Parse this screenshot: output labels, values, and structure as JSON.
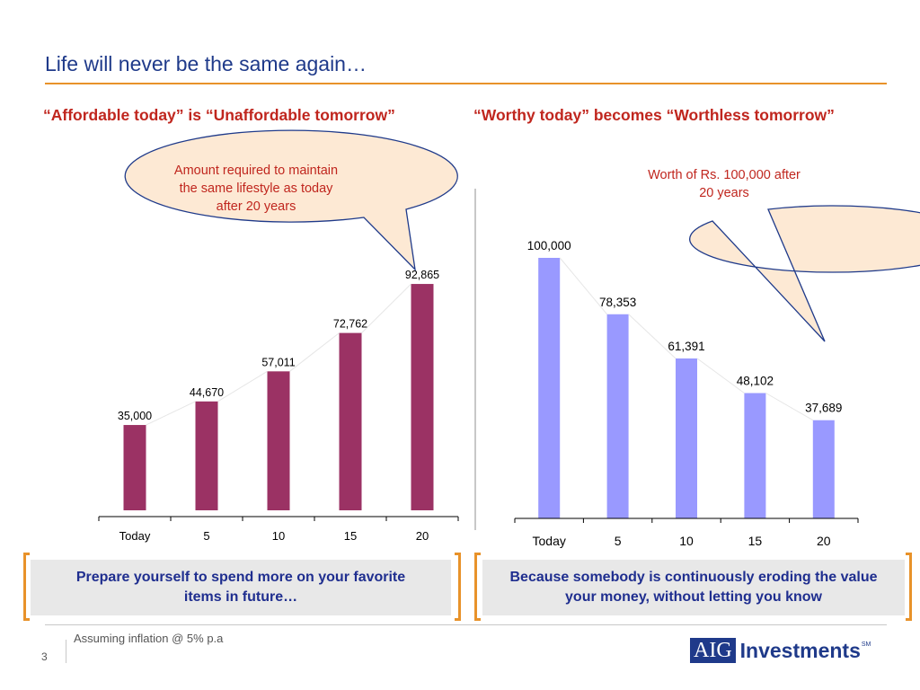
{
  "slide": {
    "title": "Life will never be the same again…",
    "page_number": "3",
    "footnote": "Assuming inflation @ 5% p.a"
  },
  "colors": {
    "title": "#1f3a8a",
    "accent_orange": "#e8922a",
    "subhead_red": "#c0261e",
    "bar_left": "#9b3264",
    "bar_right": "#9999ff",
    "bubble_fill": "#fde9d4",
    "bubble_stroke": "#1f3a8a"
  },
  "left_panel": {
    "heading": "“Affordable today” is “Unaffordable tomorrow”",
    "bubble": {
      "line1": "Amount required to maintain",
      "line2": "the same lifestyle as today",
      "line3": "after 20 years"
    },
    "callout": {
      "line1": "Prepare yourself to spend more on your favorite",
      "line2": "items in future…"
    }
  },
  "right_panel": {
    "heading": "“Worthy today” becomes “Worthless tomorrow”",
    "bubble": {
      "line1": "Worth of Rs. 100,000 after",
      "line2": "20 years"
    },
    "callout": {
      "line1": "Because somebody is continuously eroding the value",
      "line2": "your money, without letting you know"
    }
  },
  "logo": {
    "brand_box": "AIG",
    "brand_word": "Investments",
    "tm": "SM"
  },
  "chart_data": [
    {
      "type": "bar",
      "categories": [
        "Today",
        "5",
        "10",
        "15",
        "20"
      ],
      "values": [
        35000,
        44670,
        57011,
        72762,
        92865
      ],
      "labels": [
        "35,000",
        "44,670",
        "57,011",
        "72,762",
        "92,865"
      ],
      "ylim": [
        0,
        100000
      ],
      "color": "#9b3264",
      "grid": false
    },
    {
      "type": "bar",
      "categories": [
        "Today",
        "5",
        "10",
        "15",
        "20"
      ],
      "values": [
        100000,
        78353,
        61391,
        48102,
        37689
      ],
      "labels": [
        "100,000",
        "78,353",
        "61,391",
        "48,102",
        "37,689"
      ],
      "ylim": [
        0,
        100000
      ],
      "color": "#9999ff",
      "grid": false
    }
  ]
}
